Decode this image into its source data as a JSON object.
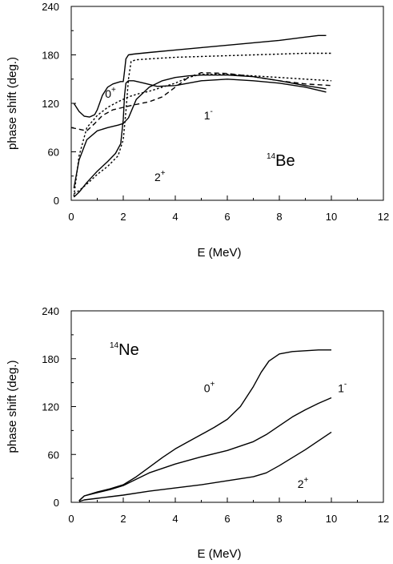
{
  "chart_data": [
    {
      "type": "line",
      "title": "",
      "xlabel": "E (MeV)",
      "ylabel": "phase shift (deg.)",
      "xlim": [
        0,
        12
      ],
      "ylim": [
        0,
        240
      ],
      "xticks": [
        "0",
        "2",
        "4",
        "6",
        "8",
        "10",
        "12"
      ],
      "yticks": [
        "0",
        "60",
        "120",
        "180",
        "240"
      ],
      "grid": false,
      "legend": "none",
      "nucleus": {
        "mass": "14",
        "symbol": "Be"
      },
      "annotations": [
        {
          "state": "0",
          "parity": "+",
          "x": 1.3,
          "y": 127
        },
        {
          "state": "1",
          "parity": "-",
          "x": 5.1,
          "y": 100
        },
        {
          "state": "2",
          "parity": "+",
          "x": 3.2,
          "y": 24
        }
      ],
      "series": [
        {
          "style": "solid",
          "x": [
            0.1,
            0.3,
            0.5,
            0.7,
            0.9,
            1.0,
            1.2,
            1.4,
            1.6,
            1.8,
            1.9,
            2.0,
            2.05,
            2.1,
            2.2,
            2.4,
            3,
            4,
            5,
            6,
            7,
            8,
            9,
            9.5,
            9.8
          ],
          "y": [
            120,
            110,
            104,
            103,
            106,
            112,
            130,
            140,
            144,
            146,
            147,
            147,
            160,
            175,
            180,
            181,
            183,
            186,
            189,
            192,
            195,
            198,
            202,
            204,
            204
          ]
        },
        {
          "style": "solid",
          "x": [
            0.1,
            0.3,
            0.6,
            1.0,
            1.4,
            1.8,
            2.0,
            2.2,
            2.5,
            3,
            3.5,
            4,
            4.5,
            5,
            6,
            7,
            8,
            9,
            9.8
          ],
          "y": [
            15,
            50,
            75,
            86,
            90,
            93,
            95,
            102,
            125,
            140,
            148,
            152,
            154,
            155,
            155,
            153,
            148,
            142,
            138
          ]
        },
        {
          "style": "solid",
          "x": [
            0.1,
            0.3,
            0.6,
            1.0,
            1.4,
            1.7,
            1.9,
            2.0,
            2.05,
            2.1,
            2.2,
            2.4,
            2.8,
            3.3,
            4,
            5,
            6,
            7,
            8,
            9,
            9.8
          ],
          "y": [
            4,
            10,
            22,
            36,
            48,
            58,
            70,
            100,
            130,
            145,
            148,
            148,
            145,
            141,
            142,
            148,
            150,
            148,
            145,
            140,
            134
          ]
        },
        {
          "style": "dotted",
          "x": [
            0.1,
            0.3,
            0.6,
            1.0,
            1.4,
            1.8,
            2.0,
            2.1,
            2.2,
            2.3,
            2.5,
            3,
            4,
            5,
            6,
            7,
            8,
            9,
            10
          ],
          "y": [
            8,
            12,
            20,
            32,
            42,
            55,
            75,
            110,
            150,
            172,
            174,
            175,
            177,
            178,
            179,
            180,
            181,
            182,
            182
          ]
        },
        {
          "style": "dotted",
          "x": [
            0.1,
            0.3,
            0.6,
            1.0,
            1.4,
            1.8,
            2.2,
            2.6,
            3,
            3.5,
            4,
            4.5,
            5,
            6,
            7,
            8,
            9,
            10
          ],
          "y": [
            5,
            55,
            90,
            105,
            115,
            122,
            128,
            132,
            135,
            140,
            145,
            152,
            156,
            156,
            154,
            152,
            150,
            148
          ]
        },
        {
          "style": "dashed",
          "x": [
            0,
            0.3,
            0.6,
            0.9,
            1.2,
            1.6,
            2.0,
            2.4,
            3,
            3.5,
            4,
            4.5,
            5,
            6,
            7,
            8,
            9,
            10
          ],
          "y": [
            90,
            88,
            86,
            95,
            105,
            112,
            115,
            118,
            122,
            128,
            140,
            152,
            158,
            157,
            153,
            148,
            144,
            142
          ]
        }
      ]
    },
    {
      "type": "line",
      "title": "",
      "xlabel": "E (MeV)",
      "ylabel": "phase shift (deg.)",
      "xlim": [
        0,
        12
      ],
      "ylim": [
        0,
        240
      ],
      "xticks": [
        "0",
        "2",
        "4",
        "6",
        "8",
        "10",
        "12"
      ],
      "yticks": [
        "0",
        "60",
        "120",
        "180",
        "240"
      ],
      "grid": false,
      "legend": "none",
      "nucleus": {
        "mass": "14",
        "symbol": "Ne"
      },
      "annotations": [
        {
          "state": "0",
          "parity": "+",
          "x": 5.1,
          "y": 138
        },
        {
          "state": "1",
          "parity": "-",
          "x": 10.25,
          "y": 138
        },
        {
          "state": "2",
          "parity": "+",
          "x": 8.7,
          "y": 18
        }
      ],
      "series": [
        {
          "style": "solid",
          "x": [
            0.3,
            0.5,
            1,
            1.5,
            2,
            2.5,
            3,
            3.5,
            4,
            4.5,
            5,
            5.5,
            6,
            6.5,
            7,
            7.3,
            7.6,
            8,
            8.5,
            9,
            9.5,
            10
          ],
          "y": [
            2,
            8,
            13,
            17,
            22,
            32,
            44,
            56,
            67,
            76,
            85,
            94,
            104,
            120,
            145,
            163,
            177,
            186,
            189,
            190,
            191,
            191
          ]
        },
        {
          "style": "solid",
          "x": [
            0.3,
            0.5,
            1,
            1.5,
            2,
            2.5,
            3,
            4,
            5,
            6,
            7,
            7.5,
            8,
            8.5,
            9,
            9.5,
            10
          ],
          "y": [
            2,
            8,
            12,
            16,
            21,
            29,
            37,
            48,
            57,
            65,
            76,
            85,
            96,
            107,
            116,
            124,
            131
          ]
        },
        {
          "style": "solid",
          "x": [
            0.3,
            0.5,
            1,
            1.5,
            2,
            3,
            4,
            5,
            6,
            7,
            7.5,
            8,
            8.5,
            9,
            9.5,
            10
          ],
          "y": [
            1,
            3,
            5,
            7,
            9,
            14,
            18,
            22,
            27,
            32,
            37,
            46,
            56,
            66,
            77,
            88
          ]
        }
      ]
    }
  ]
}
